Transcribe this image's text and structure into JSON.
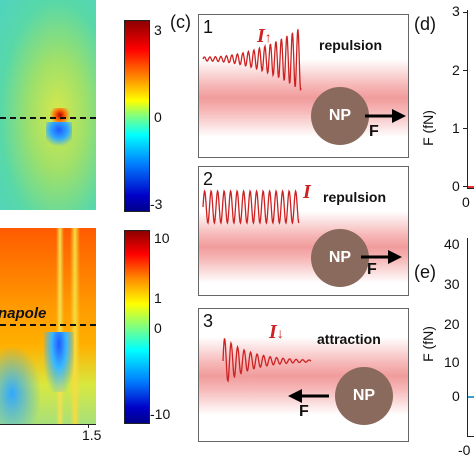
{
  "panel_c": {
    "label": "(c)",
    "cases": [
      {
        "index": "1",
        "symbol": "I",
        "arrow": "↑",
        "mode": "repulsion",
        "particle": "NP",
        "force": "F"
      },
      {
        "index": "2",
        "symbol": "I",
        "arrow": "",
        "mode": "repulsion",
        "particle": "NP",
        "force": "F"
      },
      {
        "index": "3",
        "symbol": "I",
        "arrow": "↓",
        "mode": "attraction",
        "particle": "NP",
        "force": "F"
      }
    ]
  },
  "top_map": {
    "colorbar_ticks": [
      "3",
      "0",
      "-3"
    ]
  },
  "bottom_map": {
    "annotation": "napole",
    "colorbar_ticks": [
      "10",
      "1",
      "0",
      "-10"
    ],
    "x_tick": "1.5"
  },
  "panel_d": {
    "label": "(d)",
    "ylabel": "F (fN)",
    "y_ticks": [
      "3",
      "2",
      "1",
      "0"
    ],
    "x_tick_partial": "0"
  },
  "panel_e": {
    "label": "(e)",
    "ylabel": "F (fN)",
    "y_ticks": [
      "40",
      "30",
      "20",
      "10",
      "0"
    ],
    "x_tick_partial": "-0"
  },
  "colors": {
    "wave": "#cc2222",
    "band": "#f4a6a6",
    "particle": "#8a6a5c",
    "arrow": "#000000"
  }
}
